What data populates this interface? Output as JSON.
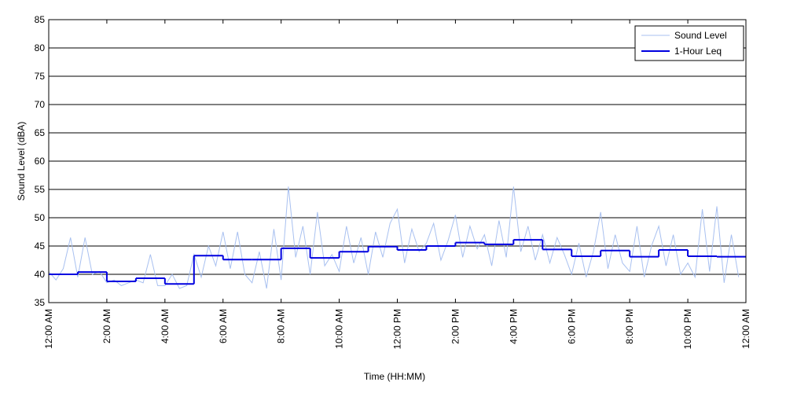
{
  "chart_data": {
    "type": "line",
    "x_label": "Time (HH:MM)",
    "y_label": "Sound Level (dBA)",
    "xlim": [
      0,
      24
    ],
    "ylim": [
      35,
      85
    ],
    "xticks": [
      {
        "value": 0,
        "label": "12:00 AM"
      },
      {
        "value": 2,
        "label": "2:00 AM"
      },
      {
        "value": 4,
        "label": "4:00 AM"
      },
      {
        "value": 6,
        "label": "6:00 AM"
      },
      {
        "value": 8,
        "label": "8:00 AM"
      },
      {
        "value": 10,
        "label": "10:00 AM"
      },
      {
        "value": 12,
        "label": "12:00 PM"
      },
      {
        "value": 14,
        "label": "2:00 PM"
      },
      {
        "value": 16,
        "label": "4:00 PM"
      },
      {
        "value": 18,
        "label": "6:00 PM"
      },
      {
        "value": 20,
        "label": "8:00 PM"
      },
      {
        "value": 22,
        "label": "10:00 PM"
      },
      {
        "value": 24,
        "label": "12:00 AM"
      }
    ],
    "yticks": [
      35,
      40,
      45,
      50,
      55,
      60,
      65,
      70,
      75,
      80,
      85
    ],
    "grid": true,
    "legend": "top-right",
    "series": [
      {
        "name": "Sound Level",
        "color": "#a8c0f0",
        "drawstyle": "line",
        "x": [
          0,
          0.25,
          0.5,
          0.75,
          1,
          1.25,
          1.5,
          1.75,
          2,
          2.25,
          2.5,
          2.75,
          3,
          3.25,
          3.5,
          3.75,
          4,
          4.25,
          4.5,
          4.75,
          5,
          5.25,
          5.5,
          5.75,
          6,
          6.25,
          6.5,
          6.75,
          7,
          7.25,
          7.5,
          7.75,
          8,
          8.25,
          8.5,
          8.75,
          9,
          9.25,
          9.5,
          9.75,
          10,
          10.25,
          10.5,
          10.75,
          11,
          11.25,
          11.5,
          11.75,
          12,
          12.25,
          12.5,
          12.75,
          13,
          13.25,
          13.5,
          13.75,
          14,
          14.25,
          14.5,
          14.75,
          15,
          15.25,
          15.5,
          15.75,
          16,
          16.25,
          16.5,
          16.75,
          17,
          17.25,
          17.5,
          17.75,
          18,
          18.25,
          18.5,
          18.75,
          19,
          19.25,
          19.5,
          19.75,
          20,
          20.25,
          20.5,
          20.75,
          21,
          21.25,
          21.5,
          21.75,
          22,
          22.25,
          22.5,
          22.75,
          23,
          23.25,
          23.5,
          23.75
        ],
        "values": [
          40.5,
          39,
          41,
          46.5,
          39.5,
          46.5,
          40,
          40.5,
          38.5,
          39,
          38,
          38.5,
          39,
          38.5,
          43.5,
          38,
          38,
          40,
          37.5,
          38,
          43.5,
          39.5,
          45,
          41.5,
          47.5,
          41,
          47.5,
          40,
          38.5,
          44,
          37.5,
          48,
          39,
          55.5,
          43,
          48.5,
          40,
          51,
          41.5,
          43.5,
          40.5,
          48.5,
          42,
          46.5,
          40,
          47.5,
          43,
          49,
          51.5,
          42,
          48,
          44,
          45.5,
          49,
          42.5,
          46,
          50.5,
          43,
          48.5,
          44.5,
          47,
          41.5,
          49.5,
          43,
          55.5,
          44,
          48.5,
          42.5,
          47,
          42,
          46.5,
          43.5,
          40,
          45.5,
          39.5,
          44,
          51,
          41,
          47,
          42,
          40.5,
          48.5,
          39.5,
          45,
          48.5,
          41.5,
          47,
          40,
          42,
          39.5,
          51.5,
          40.5,
          52,
          38.5,
          47,
          39.5
        ]
      },
      {
        "name": "1-Hour Leq",
        "color": "#0000e0",
        "drawstyle": "steps-post",
        "x": [
          0,
          1,
          2,
          3,
          4,
          5,
          6,
          7,
          8,
          9,
          10,
          11,
          12,
          13,
          14,
          15,
          16,
          17,
          18,
          19,
          20,
          21,
          22,
          23
        ],
        "values": [
          40.0,
          40.4,
          38.75,
          39.3,
          38.3,
          43.3,
          42.6,
          42.6,
          44.6,
          42.9,
          44.0,
          44.9,
          44.3,
          45.0,
          45.6,
          45.3,
          46.1,
          44.4,
          43.2,
          44.2,
          43.1,
          44.3,
          43.2,
          43.1
        ]
      }
    ]
  }
}
